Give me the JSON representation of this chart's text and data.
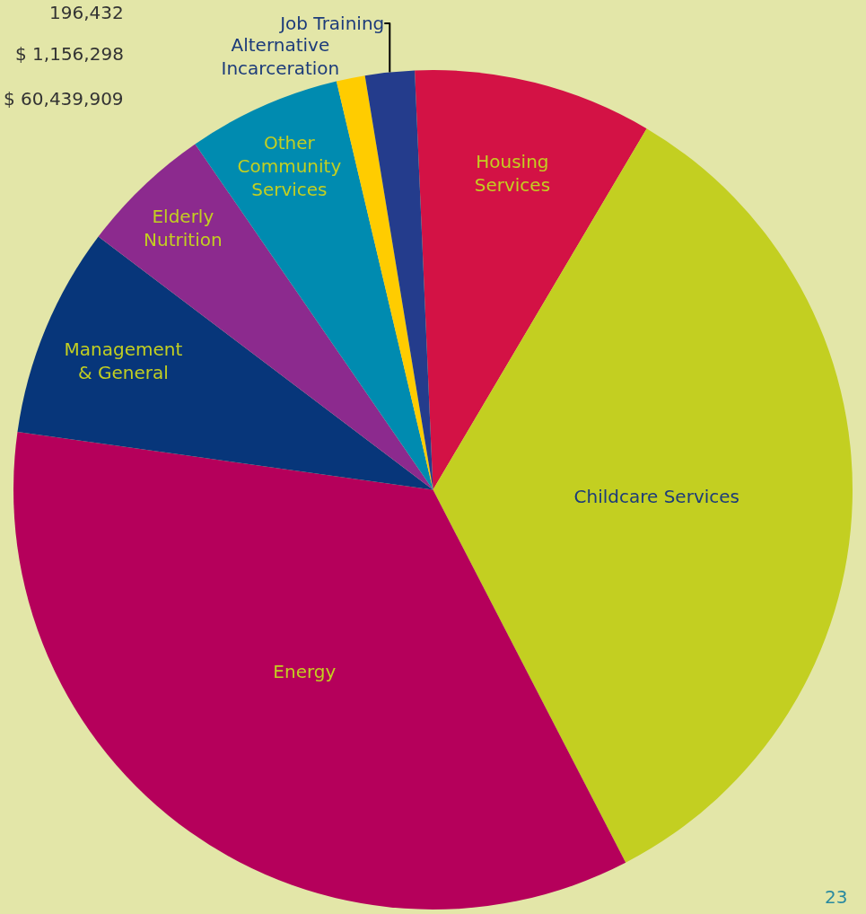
{
  "chart_data": {
    "type": "pie",
    "categories": [
      "Housing\nServices",
      "Childcare Services",
      "Energy",
      "Management\n& General",
      "Elderly\nNutrition",
      "Other\nCommunity\nServices",
      "Alternative\nIncarceration",
      "Job Training"
    ],
    "values": [
      9.2,
      33.9,
      34.8,
      8.1,
      5.1,
      5.9,
      1.1,
      1.9
    ],
    "colors": [
      "#d31245",
      "#c3cf21",
      "#b5005b",
      "#07367a",
      "#8c2a8e",
      "#008bb0",
      "#ffcc00",
      "#243c8c"
    ],
    "annotations": [
      "196,432",
      "$ 1,156,298",
      "$ 60,439,909",
      "23"
    ],
    "legend": false
  }
}
